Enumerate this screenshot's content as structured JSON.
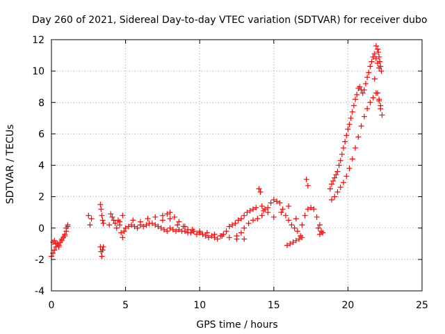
{
  "chart_data": {
    "type": "scatter",
    "title": "Day 260 of 2021, Sidereal Day-to-day VTEC variation (SDTVAR) for receiver dubo",
    "xlabel": "GPS time / hours",
    "ylabel": "SDTVAR / TECUs",
    "xlim": [
      0,
      25
    ],
    "ylim": [
      -4,
      12
    ],
    "xticks": [
      0,
      5,
      10,
      15,
      20,
      25
    ],
    "yticks": [
      -4,
      -2,
      0,
      2,
      4,
      6,
      8,
      10,
      12
    ],
    "grid": true,
    "marker": "+",
    "color": "#ff0000",
    "series": [
      {
        "name": "SDTVAR",
        "x": [
          0.0,
          0.1,
          0.2,
          0.3,
          0.4,
          0.5,
          0.6,
          0.7,
          0.8,
          0.9,
          1.0,
          1.1,
          0.1,
          0.2,
          0.3,
          0.5,
          0.7,
          0.9,
          1.0,
          1.1,
          2.5,
          2.6,
          2.7,
          3.3,
          3.35,
          3.4,
          3.45,
          3.5,
          3.3,
          3.35,
          3.4,
          3.45,
          3.5,
          3.9,
          4.0,
          4.1,
          4.2,
          4.3,
          4.4,
          4.6,
          4.8,
          4.5,
          4.6,
          4.7,
          4.8,
          4.9,
          5.0,
          5.2,
          5.4,
          5.6,
          5.8,
          6.0,
          6.2,
          6.4,
          6.6,
          6.8,
          7.0,
          7.2,
          7.4,
          7.6,
          7.8,
          8.0,
          8.2,
          8.4,
          8.6,
          8.8,
          9.0,
          9.2,
          9.4,
          9.6,
          9.8,
          10.0,
          10.2,
          10.4,
          10.6,
          10.8,
          11.0,
          11.2,
          11.4,
          11.6,
          11.8,
          12.0,
          12.2,
          12.4,
          12.6,
          12.8,
          13.0,
          13.2,
          13.4,
          13.6,
          13.8,
          5.5,
          6.0,
          6.5,
          7.0,
          7.5,
          8.0,
          8.5,
          9.0,
          9.5,
          10.0,
          10.5,
          11.0,
          11.5,
          12.0,
          12.5,
          13.0,
          7.5,
          7.8,
          8.0,
          8.3,
          8.6,
          8.9,
          9.2,
          12.5,
          12.8,
          13.0,
          13.3,
          13.6,
          13.9,
          14.2,
          14.4,
          14.6,
          14.0,
          14.1,
          14.2,
          14.3,
          14.6,
          14.8,
          15.0,
          15.2,
          15.4,
          15.6,
          15.8,
          16.0,
          16.2,
          16.4,
          16.6,
          16.8,
          15.0,
          15.5,
          16.0,
          16.5,
          15.9,
          16.1,
          16.3,
          16.5,
          16.7,
          16.9,
          16.9,
          17.1,
          17.3,
          17.5,
          17.7,
          17.9,
          18.1,
          17.2,
          17.3,
          18.0,
          18.1,
          18.2,
          18.3,
          18.8,
          18.9,
          19.0,
          19.1,
          19.2,
          19.3,
          19.4,
          19.5,
          19.6,
          19.7,
          19.8,
          19.9,
          20.0,
          20.1,
          20.2,
          20.3,
          20.4,
          20.5,
          20.6,
          20.7,
          20.8,
          20.9,
          21.0,
          21.1,
          21.2,
          21.3,
          21.4,
          21.5,
          21.6,
          21.7,
          21.8,
          21.9,
          22.0,
          22.1,
          18.9,
          19.1,
          19.3,
          19.5,
          19.7,
          19.9,
          20.1,
          20.3,
          20.5,
          20.7,
          20.9,
          21.1,
          21.3,
          21.5,
          21.7,
          21.9,
          22.1,
          22.2,
          21.9,
          22.0,
          22.05,
          22.1,
          22.15,
          22.2,
          22.25,
          21.8,
          22.0,
          22.1,
          22.2,
          22.3
        ],
        "y": [
          -1.8,
          -1.6,
          -1.4,
          -1.2,
          -1.0,
          -1.1,
          -0.9,
          -0.8,
          -0.6,
          -0.4,
          -0.2,
          0.1,
          -0.9,
          -0.8,
          -1.0,
          -1.2,
          -0.7,
          -0.5,
          0.0,
          0.2,
          0.8,
          0.2,
          0.6,
          1.5,
          1.2,
          0.8,
          0.5,
          0.3,
          -1.2,
          -1.5,
          -1.8,
          -1.4,
          -1.2,
          0.2,
          0.9,
          0.7,
          0.5,
          0.3,
          0.0,
          0.4,
          0.8,
          0.5,
          0.2,
          -0.3,
          -0.6,
          -0.2,
          0.0,
          0.1,
          0.2,
          0.1,
          0.0,
          0.2,
          0.1,
          0.2,
          0.3,
          0.3,
          0.2,
          0.1,
          0.0,
          -0.1,
          -0.2,
          0.0,
          -0.1,
          -0.2,
          -0.1,
          -0.2,
          -0.2,
          -0.3,
          -0.3,
          -0.2,
          -0.4,
          -0.3,
          -0.4,
          -0.5,
          -0.6,
          -0.5,
          -0.6,
          -0.7,
          -0.5,
          -0.4,
          -0.2,
          0.1,
          0.2,
          0.3,
          0.5,
          0.6,
          0.8,
          1.0,
          1.1,
          1.2,
          1.3,
          0.5,
          0.4,
          0.6,
          0.7,
          0.8,
          0.6,
          0.2,
          0.1,
          -0.1,
          -0.2,
          -0.3,
          -0.4,
          -0.5,
          -0.6,
          -0.7,
          -0.7,
          0.5,
          0.9,
          1.0,
          0.7,
          0.4,
          0.1,
          -0.1,
          -0.5,
          -0.3,
          0.0,
          0.3,
          0.5,
          0.6,
          0.8,
          1.2,
          1.0,
          2.5,
          2.3,
          1.4,
          1.1,
          1.3,
          1.6,
          1.8,
          1.7,
          1.6,
          1.2,
          0.8,
          0.5,
          0.2,
          0.0,
          -0.2,
          -0.5,
          0.7,
          1.0,
          1.4,
          0.6,
          -1.1,
          -1.0,
          -0.9,
          -0.8,
          -0.7,
          -0.6,
          0.2,
          0.8,
          1.2,
          1.3,
          1.2,
          0.7,
          0.2,
          3.1,
          2.7,
          0.0,
          -0.4,
          -0.2,
          -0.3,
          2.5,
          2.8,
          3.0,
          3.2,
          3.4,
          3.6,
          4.0,
          4.3,
          4.7,
          5.1,
          5.5,
          5.9,
          6.3,
          6.6,
          7.0,
          7.4,
          7.8,
          8.2,
          8.5,
          8.9,
          9.0,
          8.8,
          8.6,
          8.8,
          9.2,
          9.6,
          9.9,
          10.3,
          10.6,
          10.9,
          11.1,
          10.8,
          10.5,
          10.2,
          1.8,
          2.0,
          2.3,
          2.6,
          2.9,
          3.3,
          3.8,
          4.4,
          5.1,
          5.8,
          6.5,
          7.1,
          7.6,
          8.0,
          8.3,
          8.6,
          8.1,
          7.6,
          11.6,
          11.4,
          11.2,
          10.9,
          10.6,
          10.3,
          10.0,
          9.5,
          8.6,
          8.2,
          7.8,
          7.2
        ]
      }
    ]
  }
}
